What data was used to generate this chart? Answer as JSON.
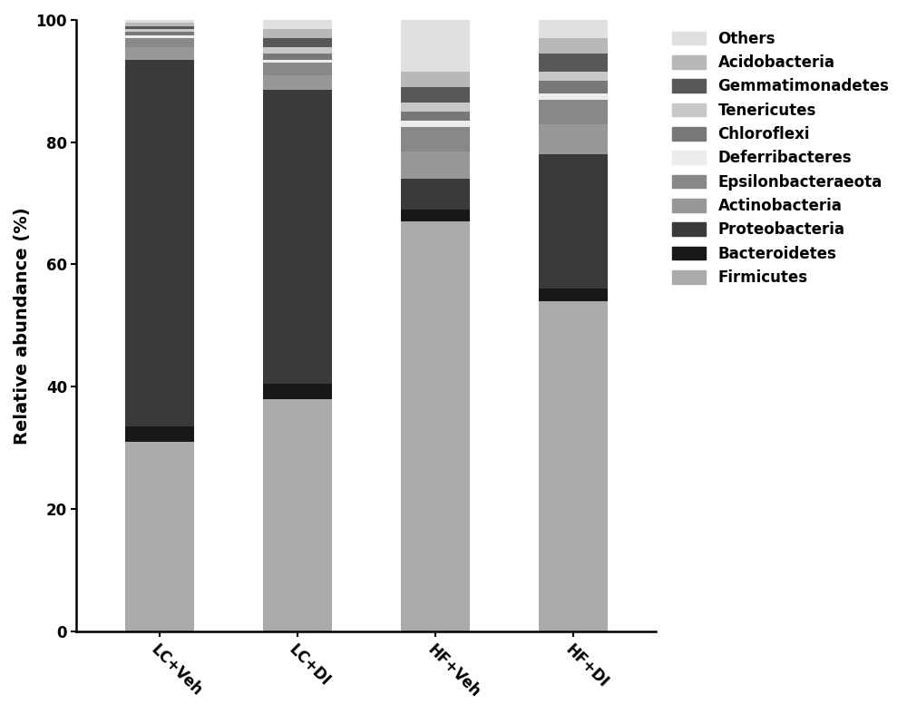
{
  "categories": [
    "LC+Veh",
    "LC+DI",
    "HF+Veh",
    "HF+DI"
  ],
  "legend_labels": [
    "Others",
    "Acidobacteria",
    "Gemmatimonadetes",
    "Tenericutes",
    "Chloroflexi",
    "Deferribacteres",
    "Epsilonbacteraeota",
    "Actinobacteria",
    "Proteobacteria",
    "Bacteroidetes",
    "Firmicutes"
  ],
  "colors": [
    "#e0e0e0",
    "#b8b8b8",
    "#585858",
    "#c8c8c8",
    "#787878",
    "#ececec",
    "#888888",
    "#989898",
    "#3a3a3a",
    "#181818",
    "#aaaaaa"
  ],
  "data": {
    "Firmicutes": [
      31.0,
      38.0,
      67.0,
      54.0
    ],
    "Bacteroidetes": [
      2.5,
      2.5,
      2.0,
      2.0
    ],
    "Proteobacteria": [
      60.0,
      48.0,
      5.0,
      22.0
    ],
    "Actinobacteria": [
      2.0,
      2.5,
      4.5,
      5.0
    ],
    "Epsilonbacteraeota": [
      1.5,
      2.0,
      4.0,
      4.0
    ],
    "Deferribacteres": [
      0.5,
      0.5,
      1.0,
      1.0
    ],
    "Chloroflexi": [
      0.5,
      1.0,
      1.5,
      2.0
    ],
    "Tenericutes": [
      0.5,
      1.0,
      1.5,
      1.5
    ],
    "Gemmatimonadetes": [
      0.5,
      1.5,
      2.5,
      3.0
    ],
    "Acidobacteria": [
      0.5,
      1.5,
      2.5,
      2.5
    ],
    "Others": [
      0.5,
      1.5,
      9.5,
      3.0
    ]
  },
  "ylabel": "Relative abundance (%)",
  "ylim": [
    0,
    100
  ],
  "yticks": [
    0,
    20,
    40,
    60,
    80,
    100
  ],
  "bar_width": 0.5,
  "background_color": "#ffffff",
  "legend_fontsize": 12,
  "ylabel_fontsize": 14,
  "tick_fontsize": 12
}
